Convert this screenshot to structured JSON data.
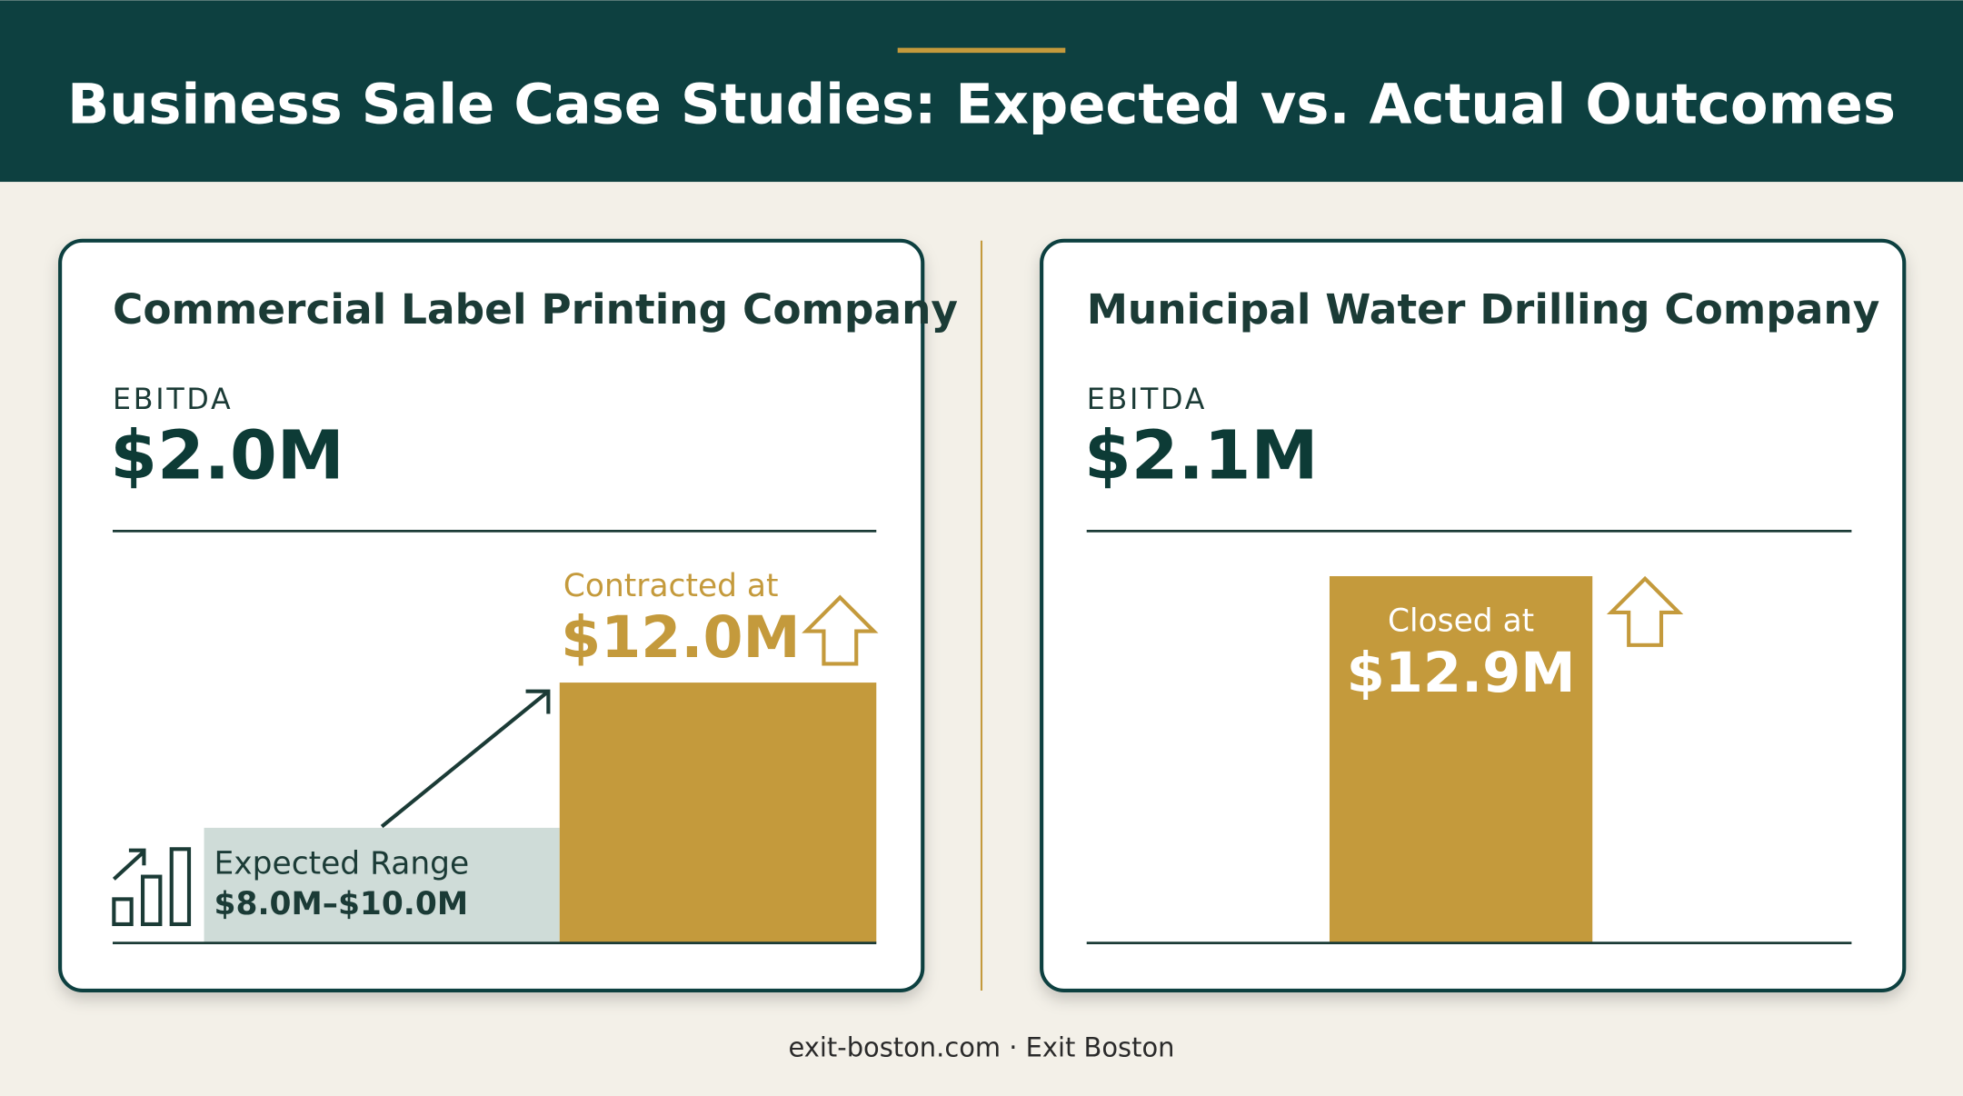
{
  "header": {
    "title": "Business Sale Case Studies: Expected vs. Actual Outcomes"
  },
  "cards": [
    {
      "title": "Commercial Label Printing Company",
      "metric_label": "EBITDA",
      "metric_value": "$2.0M",
      "expected_label": "Expected Range",
      "expected_value": "$8.0M–$10.0M",
      "outcome_label": "Contracted at",
      "outcome_value": "$12.0M"
    },
    {
      "title": "Municipal Water Drilling Company",
      "metric_label": "EBITDA",
      "metric_value": "$2.1M",
      "outcome_label": "Closed at",
      "outcome_value": "$12.9M"
    }
  ],
  "footer": "exit-boston.com · Exit Boston"
}
